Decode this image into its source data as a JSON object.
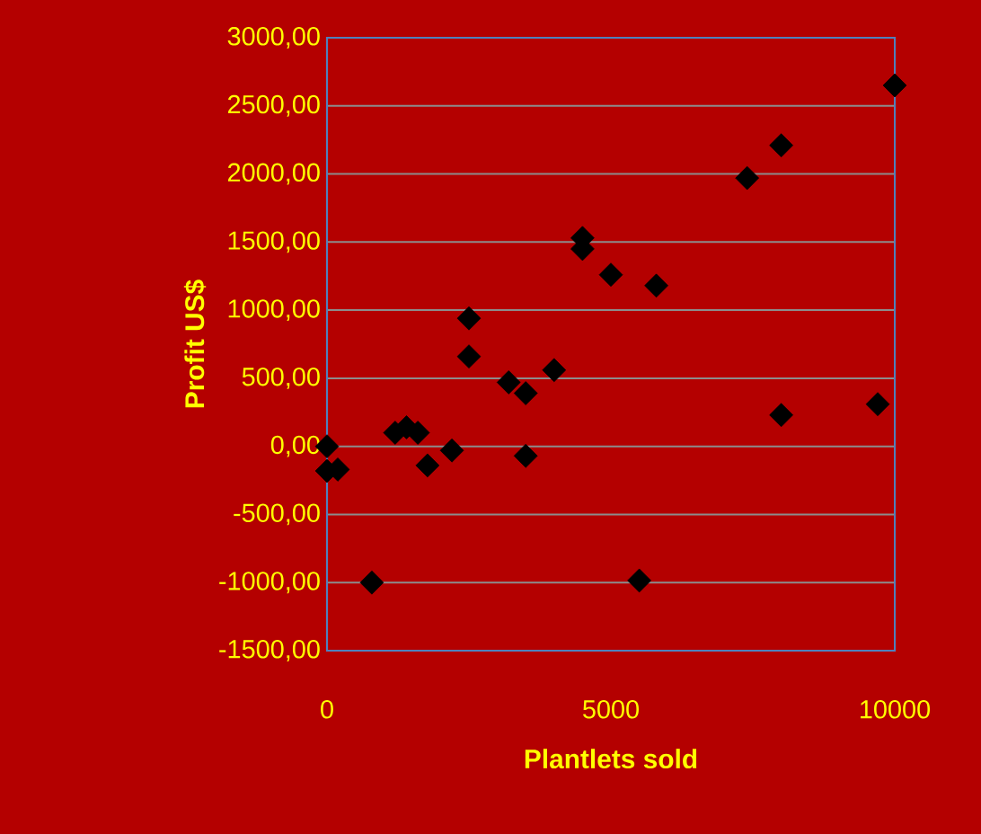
{
  "chart_data": {
    "type": "scatter",
    "xlabel": "Plantlets sold",
    "ylabel": "Profit US$",
    "x": [
      10000,
      8000,
      7400,
      4500,
      4500,
      5000,
      5800,
      2500,
      2500,
      4000,
      3200,
      3500,
      8000,
      9700,
      0,
      0,
      190,
      1200,
      1400,
      1600,
      1770,
      2200,
      3500,
      790,
      5500
    ],
    "series": [
      {
        "color": "#000000",
        "values": [
          2650,
          2210,
          1970,
          1530,
          1450,
          1260,
          1180,
          940,
          660,
          560,
          470,
          390,
          230,
          310,
          0,
          -180,
          -170,
          100,
          140,
          100,
          -140,
          -30,
          -70,
          -1000,
          -985
        ]
      }
    ],
    "xlim": [
      0,
      10000
    ],
    "ylim": [
      -1500,
      3000
    ],
    "xticks": [
      0,
      5000,
      10000
    ],
    "yticks": [
      {
        "value": -1500,
        "label": "-1500,00"
      },
      {
        "value": -1000,
        "label": "-1000,00"
      },
      {
        "value": -500,
        "label": "-500,00"
      },
      {
        "value": 0,
        "label": "0,00"
      },
      {
        "value": 500,
        "label": "500,00"
      },
      {
        "value": 1000,
        "label": "1000,00"
      },
      {
        "value": 1500,
        "label": "1500,00"
      },
      {
        "value": 2000,
        "label": "2000,00"
      },
      {
        "value": 2500,
        "label": "2500,00"
      },
      {
        "value": 3000,
        "label": "3000,00"
      }
    ],
    "grid": "y",
    "marker": "diamond"
  }
}
